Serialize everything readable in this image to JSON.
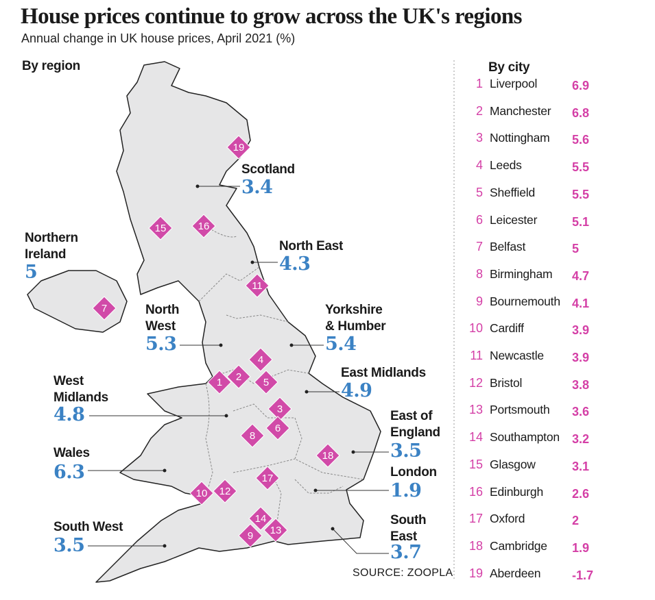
{
  "header": {
    "title": "House prices continue to grow across the UK's regions",
    "subtitle": "Annual change in UK house prices, April 2021 (%)"
  },
  "regions_heading": "By region",
  "regions": [
    {
      "name": "Scotland",
      "value": 3.4
    },
    {
      "name": "Northern Ireland",
      "value": 5
    },
    {
      "name": "North East",
      "value": 4.3
    },
    {
      "name": "North West",
      "value": 5.3
    },
    {
      "name": "Yorkshire & Humber",
      "value": 5.4
    },
    {
      "name": "East Midlands",
      "value": 4.9
    },
    {
      "name": "West Midlands",
      "value": 4.8
    },
    {
      "name": "East of England",
      "value": 3.5
    },
    {
      "name": "Wales",
      "value": 6.3
    },
    {
      "name": "London",
      "value": 1.9
    },
    {
      "name": "South West",
      "value": 3.5
    },
    {
      "name": "South East",
      "value": 3.7
    }
  ],
  "cities_heading": "By city",
  "cities": [
    {
      "rank": 1,
      "name": "Liverpool",
      "value": 6.9
    },
    {
      "rank": 2,
      "name": "Manchester",
      "value": 6.8
    },
    {
      "rank": 3,
      "name": "Nottingham",
      "value": 5.6
    },
    {
      "rank": 4,
      "name": "Leeds",
      "value": 5.5
    },
    {
      "rank": 5,
      "name": "Sheffield",
      "value": 5.5
    },
    {
      "rank": 6,
      "name": "Leicester",
      "value": 5.1
    },
    {
      "rank": 7,
      "name": "Belfast",
      "value": 5
    },
    {
      "rank": 8,
      "name": "Birmingham",
      "value": 4.7
    },
    {
      "rank": 9,
      "name": "Bournemouth",
      "value": 4.1
    },
    {
      "rank": 10,
      "name": "Cardiff",
      "value": 3.9
    },
    {
      "rank": 11,
      "name": "Newcastle",
      "value": 3.9
    },
    {
      "rank": 12,
      "name": "Bristol",
      "value": 3.8
    },
    {
      "rank": 13,
      "name": "Portsmouth",
      "value": 3.6
    },
    {
      "rank": 14,
      "name": "Southampton",
      "value": 3.2
    },
    {
      "rank": 15,
      "name": "Glasgow",
      "value": 3.1
    },
    {
      "rank": 16,
      "name": "Edinburgh",
      "value": 2.6
    },
    {
      "rank": 17,
      "name": "Oxford",
      "value": 2
    },
    {
      "rank": 18,
      "name": "Cambridge",
      "value": 1.9
    },
    {
      "rank": 19,
      "name": "Aberdeen",
      "value": -1.7
    }
  ],
  "source": "SOURCE: ZOOPLA"
}
